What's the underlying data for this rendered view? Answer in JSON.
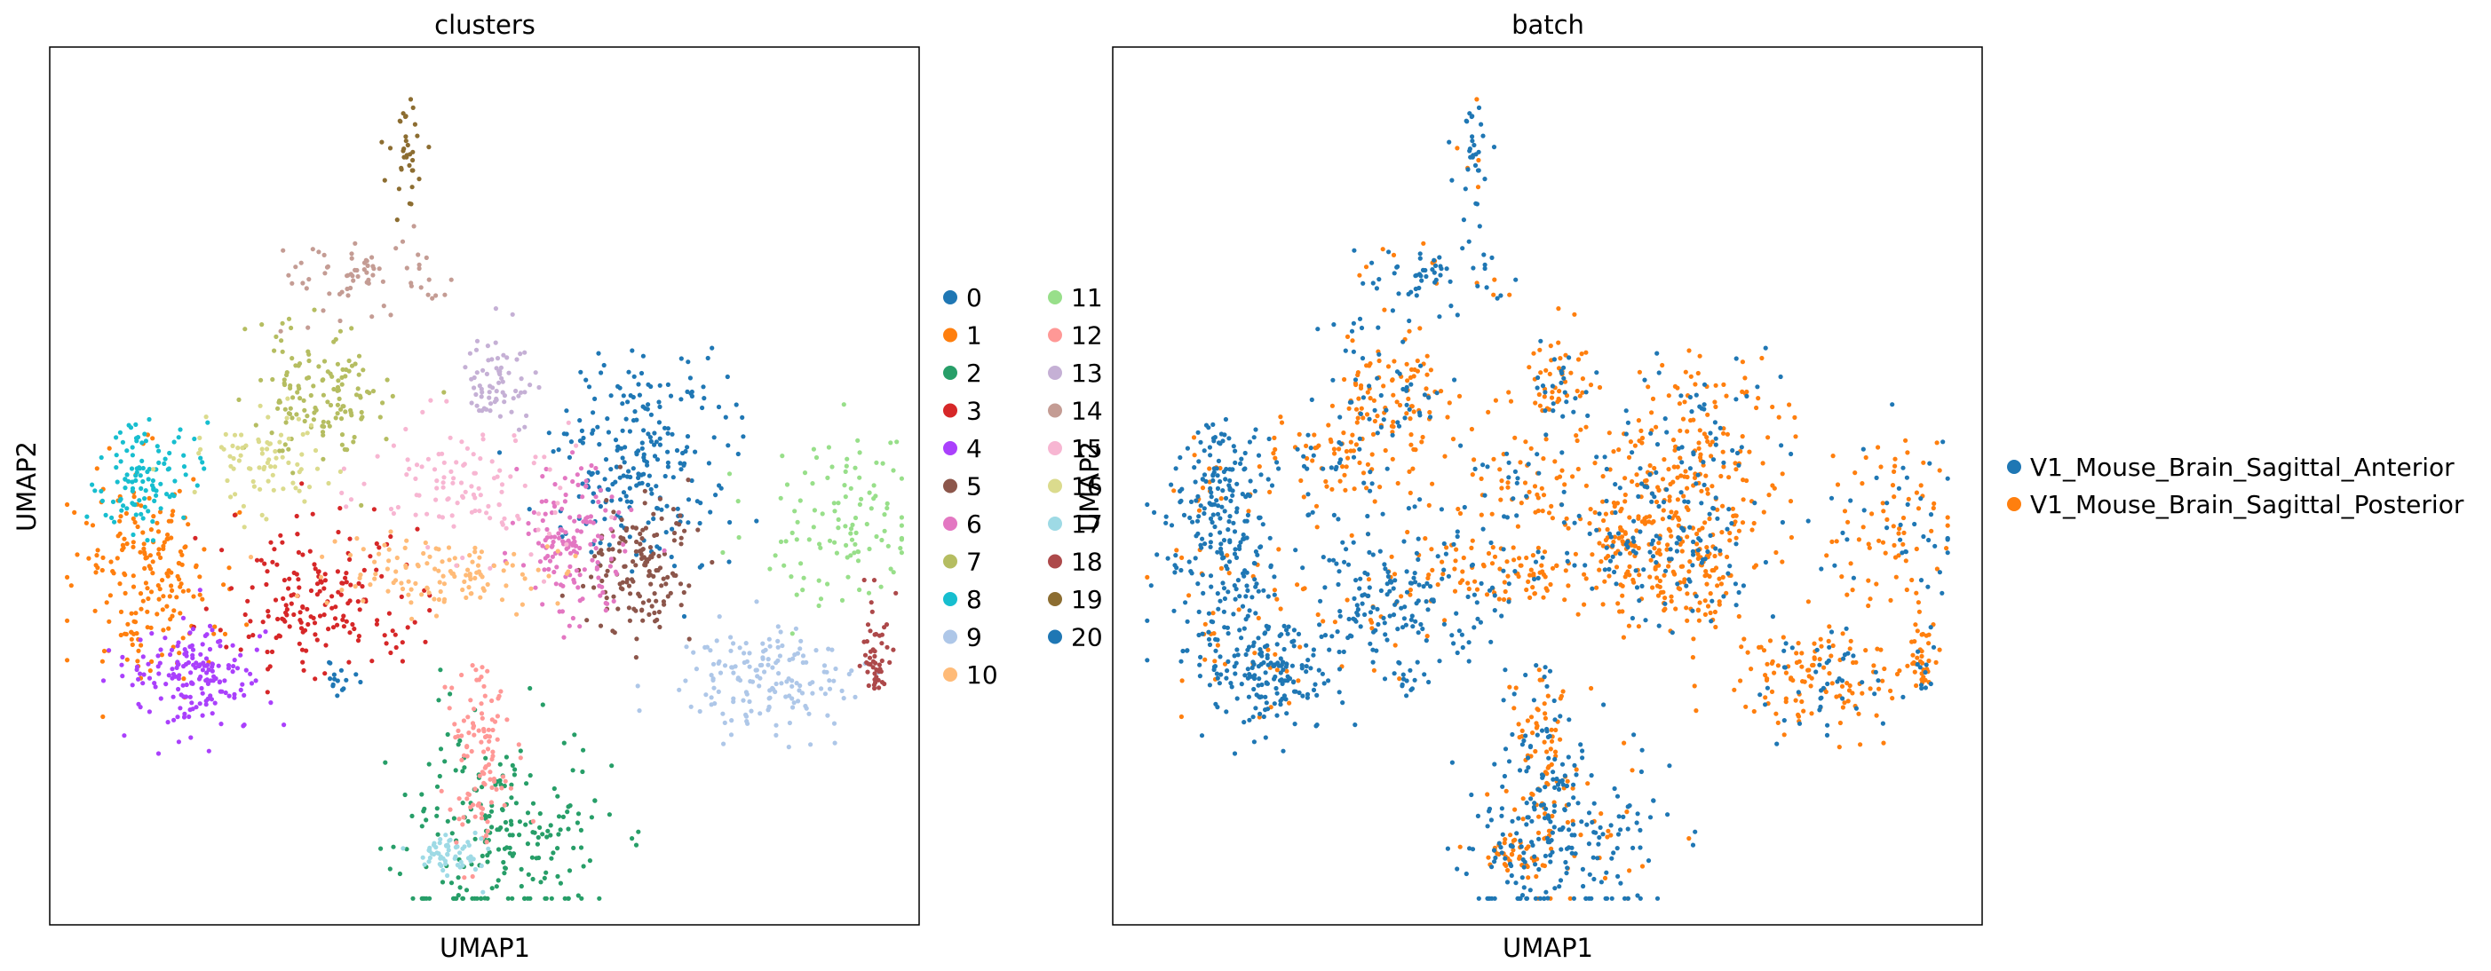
{
  "chart_data": [
    {
      "type": "scatter",
      "title": "clusters",
      "xlabel": "UMAP1",
      "ylabel": "UMAP2",
      "grid": false,
      "ticks": "none",
      "legend_placement": "right, two columns",
      "xlim": [
        0,
        100
      ],
      "ylim": [
        0,
        100
      ],
      "series": [
        {
          "name": "0",
          "color": "#1f77b4",
          "point_count": 240,
          "center": [
            68,
            47
          ],
          "spread": [
            5,
            6
          ]
        },
        {
          "name": "1",
          "color": "#ff7f0e",
          "point_count": 200,
          "center": [
            11,
            60
          ],
          "spread": [
            4,
            6
          ]
        },
        {
          "name": "2",
          "color": "#279e68",
          "point_count": 220,
          "center": [
            52,
            89
          ],
          "spread": [
            6,
            6
          ]
        },
        {
          "name": "3",
          "color": "#d62728",
          "point_count": 180,
          "center": [
            31,
            63
          ],
          "spread": [
            6,
            4
          ]
        },
        {
          "name": "4",
          "color": "#aa40fc",
          "point_count": 170,
          "center": [
            17,
            72
          ],
          "spread": [
            4,
            3
          ]
        },
        {
          "name": "5",
          "color": "#8c564b",
          "point_count": 150,
          "center": [
            68,
            59
          ],
          "spread": [
            3,
            4
          ]
        },
        {
          "name": "6",
          "color": "#e377c2",
          "point_count": 150,
          "center": [
            60,
            56
          ],
          "spread": [
            3,
            4
          ]
        },
        {
          "name": "7",
          "color": "#b5bd61",
          "point_count": 140,
          "center": [
            31,
            39
          ],
          "spread": [
            4,
            4
          ]
        },
        {
          "name": "8",
          "color": "#17becf",
          "point_count": 110,
          "center": [
            11,
            49
          ],
          "spread": [
            3,
            3
          ]
        },
        {
          "name": "9",
          "color": "#aec7e8",
          "point_count": 160,
          "center": [
            83,
            72
          ],
          "spread": [
            5,
            3
          ]
        },
        {
          "name": "10",
          "color": "#ffbb78",
          "point_count": 120,
          "center": [
            45,
            60
          ],
          "spread": [
            7,
            2
          ]
        },
        {
          "name": "11",
          "color": "#98df8a",
          "point_count": 110,
          "center": [
            91,
            55
          ],
          "spread": [
            5,
            5
          ]
        },
        {
          "name": "12",
          "color": "#ff9896",
          "point_count": 110,
          "center": [
            49,
            81
          ],
          "spread": [
            2,
            6
          ]
        },
        {
          "name": "13",
          "color": "#c5b0d5",
          "point_count": 70,
          "center": [
            52,
            38
          ],
          "spread": [
            2,
            3
          ]
        },
        {
          "name": "14",
          "color": "#c49c94",
          "point_count": 70,
          "center": [
            36,
            26
          ],
          "spread": [
            4,
            2
          ]
        },
        {
          "name": "15",
          "color": "#f7b6d2",
          "point_count": 110,
          "center": [
            48,
            50
          ],
          "spread": [
            6,
            4
          ]
        },
        {
          "name": "16",
          "color": "#dbdb8d",
          "point_count": 80,
          "center": [
            24,
            47
          ],
          "spread": [
            4,
            3
          ]
        },
        {
          "name": "17",
          "color": "#9edae5",
          "point_count": 60,
          "center": [
            46,
            92
          ],
          "spread": [
            2,
            1
          ]
        },
        {
          "name": "18",
          "color": "#ad494a",
          "point_count": 50,
          "center": [
            95,
            69
          ],
          "spread": [
            1,
            3
          ]
        },
        {
          "name": "19",
          "color": "#8c6d31",
          "point_count": 35,
          "center": [
            41,
            12
          ],
          "spread": [
            1,
            3
          ]
        },
        {
          "name": "20",
          "color": "#1f77b4",
          "point_count": 15,
          "center": [
            33,
            72
          ],
          "spread": [
            1,
            1
          ]
        }
      ]
    },
    {
      "type": "scatter",
      "title": "batch",
      "xlabel": "UMAP1",
      "ylabel": "UMAP2",
      "grid": false,
      "ticks": "none",
      "legend_placement": "right",
      "xlim": [
        0,
        100
      ],
      "ylim": [
        0,
        100
      ],
      "series": [
        {
          "name": "V1_Mouse_Brain_Sagittal_Anterior",
          "color": "#1f77b4",
          "point_count": 1700
        },
        {
          "name": "V1_Mouse_Brain_Sagittal_Posterior",
          "color": "#ff7f0e",
          "point_count": 1900
        }
      ]
    }
  ]
}
